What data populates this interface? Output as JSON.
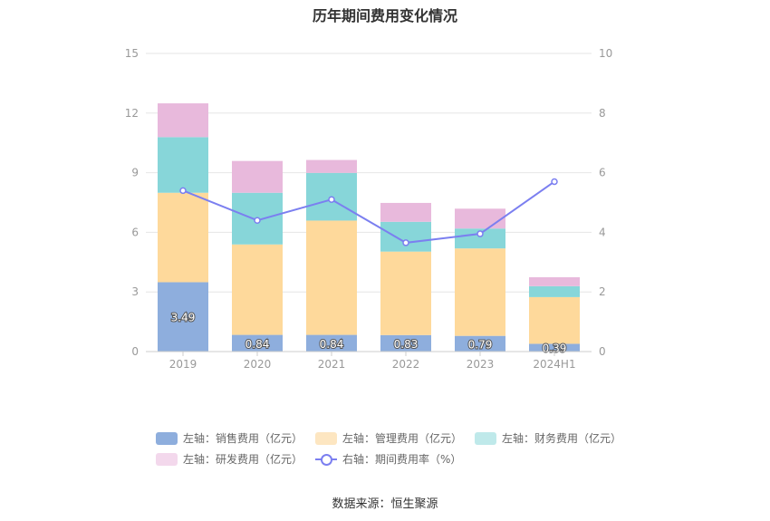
{
  "chart_data": {
    "type": "bar",
    "title": "历年期间费用变化情况",
    "categories": [
      "2019",
      "2020",
      "2021",
      "2022",
      "2023",
      "2024H1"
    ],
    "left_axis": {
      "ylim": [
        0,
        15
      ],
      "ticks": [
        0,
        3,
        6,
        9,
        12,
        15
      ]
    },
    "right_axis": {
      "ylim": [
        0,
        10
      ],
      "ticks": [
        0,
        2,
        4,
        6,
        8,
        10
      ]
    },
    "series": [
      {
        "name": "左轴：销售费用（亿元）",
        "axis": "left",
        "color": "#8eaedd",
        "values": [
          3.49,
          0.84,
          0.84,
          0.83,
          0.79,
          0.39
        ],
        "labels_shown": true
      },
      {
        "name": "左轴：管理费用（亿元）",
        "axis": "left",
        "color": "#fed99b",
        "values": [
          4.5,
          4.55,
          5.75,
          4.2,
          4.4,
          2.35
        ]
      },
      {
        "name": "左轴：财务费用（亿元）",
        "axis": "left",
        "color": "#87d6d9",
        "values": [
          2.8,
          2.6,
          2.4,
          1.5,
          1.0,
          0.55
        ]
      },
      {
        "name": "左轴：研发费用（亿元）",
        "axis": "left",
        "color": "#e8b9dc",
        "values": [
          1.7,
          1.6,
          0.65,
          0.95,
          1.0,
          0.45
        ]
      },
      {
        "name": "右轴：期间费用率（%）",
        "axis": "right",
        "type": "line",
        "color": "#7b7ff0",
        "values": [
          5.4,
          4.4,
          5.1,
          3.65,
          3.95,
          5.7
        ]
      }
    ],
    "grid": true,
    "legend_position": "bottom"
  },
  "source": "数据来源：恒生聚源"
}
